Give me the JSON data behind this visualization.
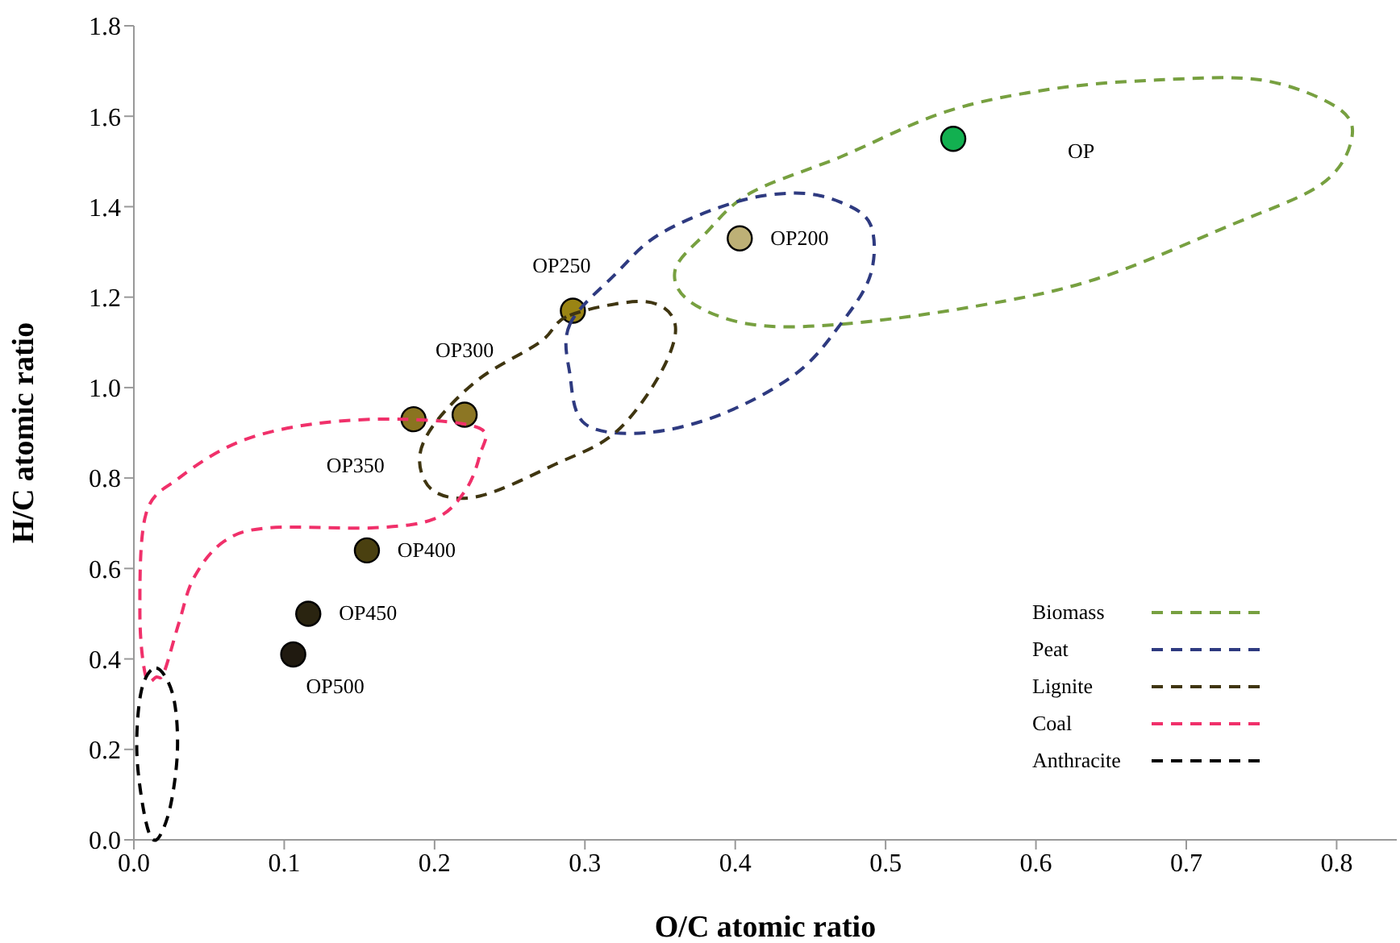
{
  "chart_data": {
    "type": "scatter",
    "xlabel": "O/C atomic ratio",
    "ylabel": "H/C atomic ratio",
    "xlim": [
      0,
      0.84
    ],
    "xticks": [
      {
        "value": 0,
        "label": "0.0"
      },
      0.1,
      0.2,
      0.3,
      0.4,
      0.5,
      0.6,
      0.7,
      0.8
    ],
    "ylim": [
      0,
      1.8
    ],
    "yticks": [
      {
        "value": 0,
        "label": "0.0"
      },
      0.2,
      0.4,
      0.6,
      0.8,
      {
        "value": 1,
        "label": "1.0"
      },
      1.2,
      1.4,
      1.6,
      1.8
    ],
    "grid": false,
    "marker": "circle",
    "x": [
      0.545,
      0.403,
      0.292,
      0.22,
      0.186,
      0.155,
      0.116,
      0.106
    ],
    "values": [
      1.55,
      1.33,
      1.17,
      0.94,
      0.93,
      0.64,
      0.5,
      0.41
    ],
    "colors": [
      "#12b050",
      "#bdb076",
      "#9a8414",
      "#8c7624",
      "#8a7420",
      "#4a4010",
      "#2a2410",
      "#201a10"
    ],
    "annotations": [
      "OP",
      {
        "text": "OP200",
        "x": 0.403,
        "y": 1.33
      },
      {
        "text": "OP250",
        "x": 0.292,
        "y": 1.17
      },
      {
        "text": "OP300",
        "x": 0.22,
        "y": 0.94
      },
      {
        "text": "OP350",
        "x": 0.186,
        "y": 0.93
      },
      {
        "text": "OP400",
        "x": 0.155,
        "y": 0.64
      },
      {
        "text": "OP450",
        "x": 0.116,
        "y": 0.5
      },
      {
        "text": "OP500",
        "x": 0.106,
        "y": 0.41
      },
      "Biomass",
      "Peat",
      "Lignite",
      "Coal",
      "Anthracite"
    ]
  }
}
